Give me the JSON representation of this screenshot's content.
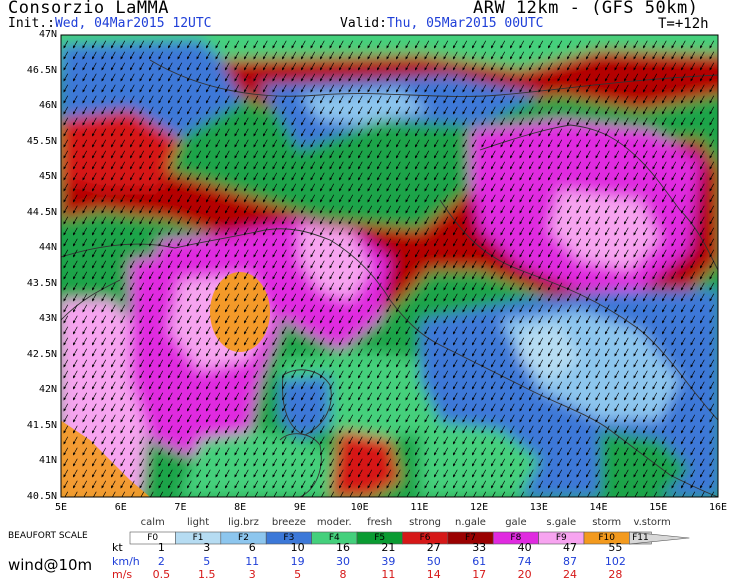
{
  "header": {
    "brand": "Consorzio LaMMA",
    "model": "ARW 12km - (GFS 50km)",
    "init_label": "Init.:",
    "init_value": "Wed, 04Mar2015 12UTC",
    "valid_label": "Valid:",
    "valid_value": "Thu, 05Mar2015 00UTC",
    "lead_time": "T=+12h"
  },
  "map": {
    "lat_ticks": [
      "47N",
      "46.5N",
      "46N",
      "45.5N",
      "45N",
      "44.5N",
      "44N",
      "43.5N",
      "43N",
      "42.5N",
      "42N",
      "41.5N",
      "41N",
      "40.5N"
    ],
    "lon_ticks": [
      "5E",
      "6E",
      "7E",
      "8E",
      "9E",
      "10E",
      "11E",
      "12E",
      "13E",
      "14E",
      "15E",
      "16E"
    ],
    "variable": "wind@10m",
    "wind_direction": "northerly / northeasterly"
  },
  "scale": {
    "title": "BEAUFORT SCALE",
    "classes": [
      {
        "name": "calm",
        "code": "F0",
        "color": "#ffffff"
      },
      {
        "name": "light",
        "code": "F1",
        "color": "#b6dcf2"
      },
      {
        "name": "lig.brz",
        "code": "F2",
        "color": "#8dc6ee"
      },
      {
        "name": "breeze",
        "code": "F3",
        "color": "#3c78d8"
      },
      {
        "name": "moder.",
        "code": "F4",
        "color": "#44d07c"
      },
      {
        "name": "fresh",
        "code": "F5",
        "color": "#0a9b32"
      },
      {
        "name": "strong",
        "code": "F6",
        "color": "#d61818"
      },
      {
        "name": "n.gale",
        "code": "F7",
        "color": "#9a0000"
      },
      {
        "name": "gale",
        "code": "F8",
        "color": "#e02ae0"
      },
      {
        "name": "s.gale",
        "code": "F9",
        "color": "#f7a4f0"
      },
      {
        "name": "storm",
        "code": "F10",
        "color": "#f39a1e"
      },
      {
        "name": "v.storm",
        "code": "F11",
        "color": "#d8d8d8"
      }
    ],
    "units": [
      "kt",
      "km/h",
      "m/s"
    ],
    "kt": [
      "1",
      "3",
      "6",
      "10",
      "16",
      "21",
      "27",
      "33",
      "40",
      "47",
      "55"
    ],
    "kmh": [
      "2",
      "5",
      "11",
      "19",
      "30",
      "39",
      "50",
      "61",
      "74",
      "87",
      "102"
    ],
    "ms": [
      "0.5",
      "1.5",
      "3",
      "5",
      "8",
      "11",
      "14",
      "17",
      "20",
      "24",
      "28"
    ]
  }
}
